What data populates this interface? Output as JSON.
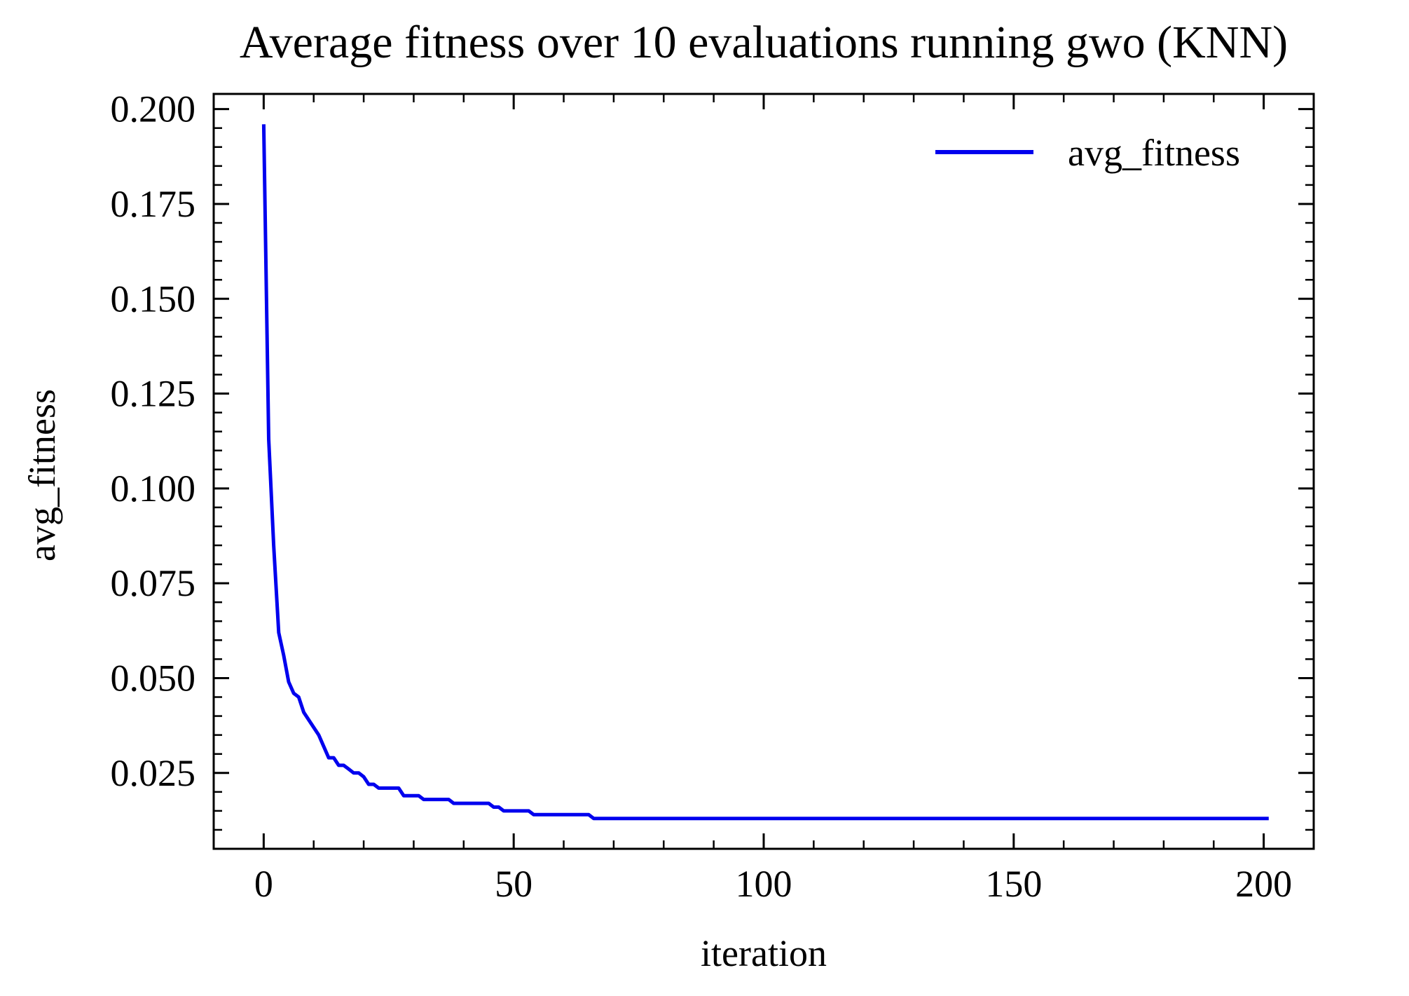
{
  "chart_data": {
    "type": "line",
    "title": "Average fitness over 10 evaluations running gwo (KNN)",
    "xlabel": "iteration",
    "ylabel": "avg_fitness",
    "xlim": [
      -10,
      210
    ],
    "ylim": [
      0.005,
      0.204
    ],
    "x_ticks": [
      0,
      50,
      100,
      150,
      200
    ],
    "x_tick_labels": [
      "0",
      "50",
      "100",
      "150",
      "200"
    ],
    "x_minor_step": 10,
    "y_ticks": [
      0.025,
      0.05,
      0.075,
      0.1,
      0.125,
      0.15,
      0.175,
      0.2
    ],
    "y_tick_labels": [
      "0.025",
      "0.050",
      "0.075",
      "0.100",
      "0.125",
      "0.150",
      "0.175",
      "0.200"
    ],
    "y_minor_step": 0.005,
    "grid": false,
    "ticks_direction": "in",
    "legend": {
      "position": "top-right"
    },
    "series": [
      {
        "name": "avg_fitness",
        "color": "#0000ee",
        "x": [
          0,
          1,
          2,
          3,
          4,
          5,
          6,
          7,
          8,
          9,
          10,
          11,
          12,
          13,
          14,
          15,
          16,
          17,
          18,
          19,
          20,
          21,
          22,
          23,
          24,
          25,
          26,
          27,
          28,
          29,
          30,
          31,
          32,
          33,
          34,
          35,
          36,
          37,
          38,
          39,
          40,
          41,
          42,
          43,
          44,
          45,
          46,
          47,
          48,
          49,
          50,
          51,
          52,
          53,
          54,
          55,
          56,
          57,
          58,
          59,
          60,
          61,
          62,
          63,
          64,
          65,
          66,
          201
        ],
        "y": [
          0.196,
          0.113,
          0.085,
          0.062,
          0.056,
          0.049,
          0.046,
          0.045,
          0.041,
          0.039,
          0.037,
          0.035,
          0.032,
          0.029,
          0.029,
          0.027,
          0.027,
          0.026,
          0.025,
          0.025,
          0.024,
          0.022,
          0.022,
          0.021,
          0.021,
          0.021,
          0.021,
          0.021,
          0.019,
          0.019,
          0.019,
          0.019,
          0.018,
          0.018,
          0.018,
          0.018,
          0.018,
          0.018,
          0.017,
          0.017,
          0.017,
          0.017,
          0.017,
          0.017,
          0.017,
          0.017,
          0.016,
          0.016,
          0.015,
          0.015,
          0.015,
          0.015,
          0.015,
          0.015,
          0.014,
          0.014,
          0.014,
          0.014,
          0.014,
          0.014,
          0.014,
          0.014,
          0.014,
          0.014,
          0.014,
          0.014,
          0.013,
          0.013
        ]
      }
    ]
  }
}
